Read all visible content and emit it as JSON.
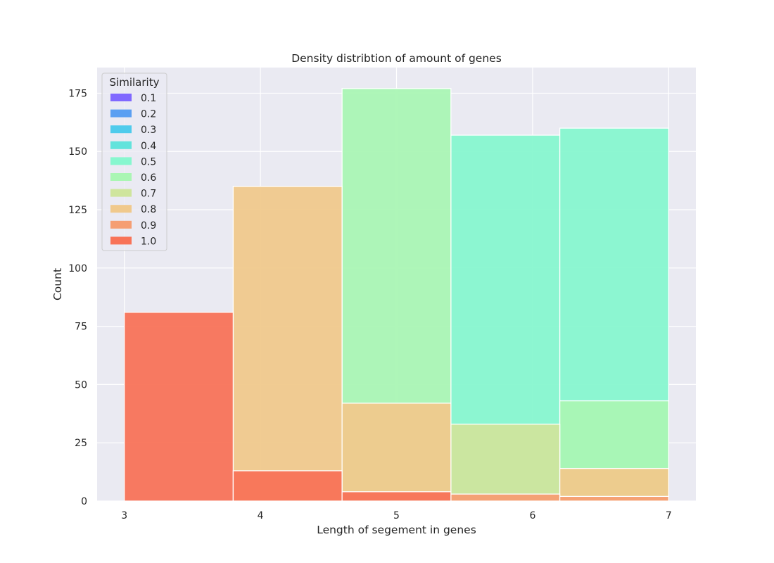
{
  "chart_data": {
    "type": "bar",
    "title": "Density distribtion of amount of genes",
    "xlabel": "Length of segement in genes",
    "ylabel": "Count",
    "xlim": [
      2.8,
      7.2
    ],
    "ylim": [
      0,
      186
    ],
    "xticks": [
      3,
      4,
      5,
      6,
      7
    ],
    "yticks": [
      0,
      25,
      50,
      75,
      100,
      125,
      150,
      175
    ],
    "grid": true,
    "legend": {
      "title": "Similarity",
      "position": "top-left",
      "entries": [
        "0.1",
        "0.2",
        "0.3",
        "0.4",
        "0.5",
        "0.6",
        "0.7",
        "0.8",
        "0.9",
        "1.0"
      ]
    },
    "bins": [
      [
        3.0,
        3.8
      ],
      [
        3.8,
        4.6
      ],
      [
        4.6,
        5.4
      ],
      [
        5.4,
        6.2
      ],
      [
        6.2,
        7.0
      ]
    ],
    "series": [
      {
        "name": "0.1",
        "color": "#8068ff",
        "values": [
          0,
          0,
          0,
          0,
          0
        ]
      },
      {
        "name": "0.2",
        "color": "#5a9ff2",
        "values": [
          0,
          0,
          0,
          0,
          0
        ]
      },
      {
        "name": "0.3",
        "color": "#4fcbec",
        "values": [
          0,
          0,
          0,
          0,
          0
        ]
      },
      {
        "name": "0.4",
        "color": "#62e3dc",
        "values": [
          0,
          0,
          0,
          0,
          0
        ]
      },
      {
        "name": "0.5",
        "color": "#87f7cf",
        "values": [
          0,
          0,
          0,
          157,
          160
        ]
      },
      {
        "name": "0.6",
        "color": "#aaf6b4",
        "values": [
          0,
          0,
          177,
          0,
          43
        ]
      },
      {
        "name": "0.7",
        "color": "#cfe59d",
        "values": [
          0,
          0,
          0,
          33,
          0
        ]
      },
      {
        "name": "0.8",
        "color": "#f0c98c",
        "values": [
          0,
          135,
          42,
          0,
          14
        ]
      },
      {
        "name": "0.9",
        "color": "#f59e73",
        "values": [
          0,
          0,
          0,
          3,
          2
        ]
      },
      {
        "name": "1.0",
        "color": "#f87358",
        "values": [
          81,
          13,
          4,
          0,
          0
        ]
      }
    ]
  }
}
